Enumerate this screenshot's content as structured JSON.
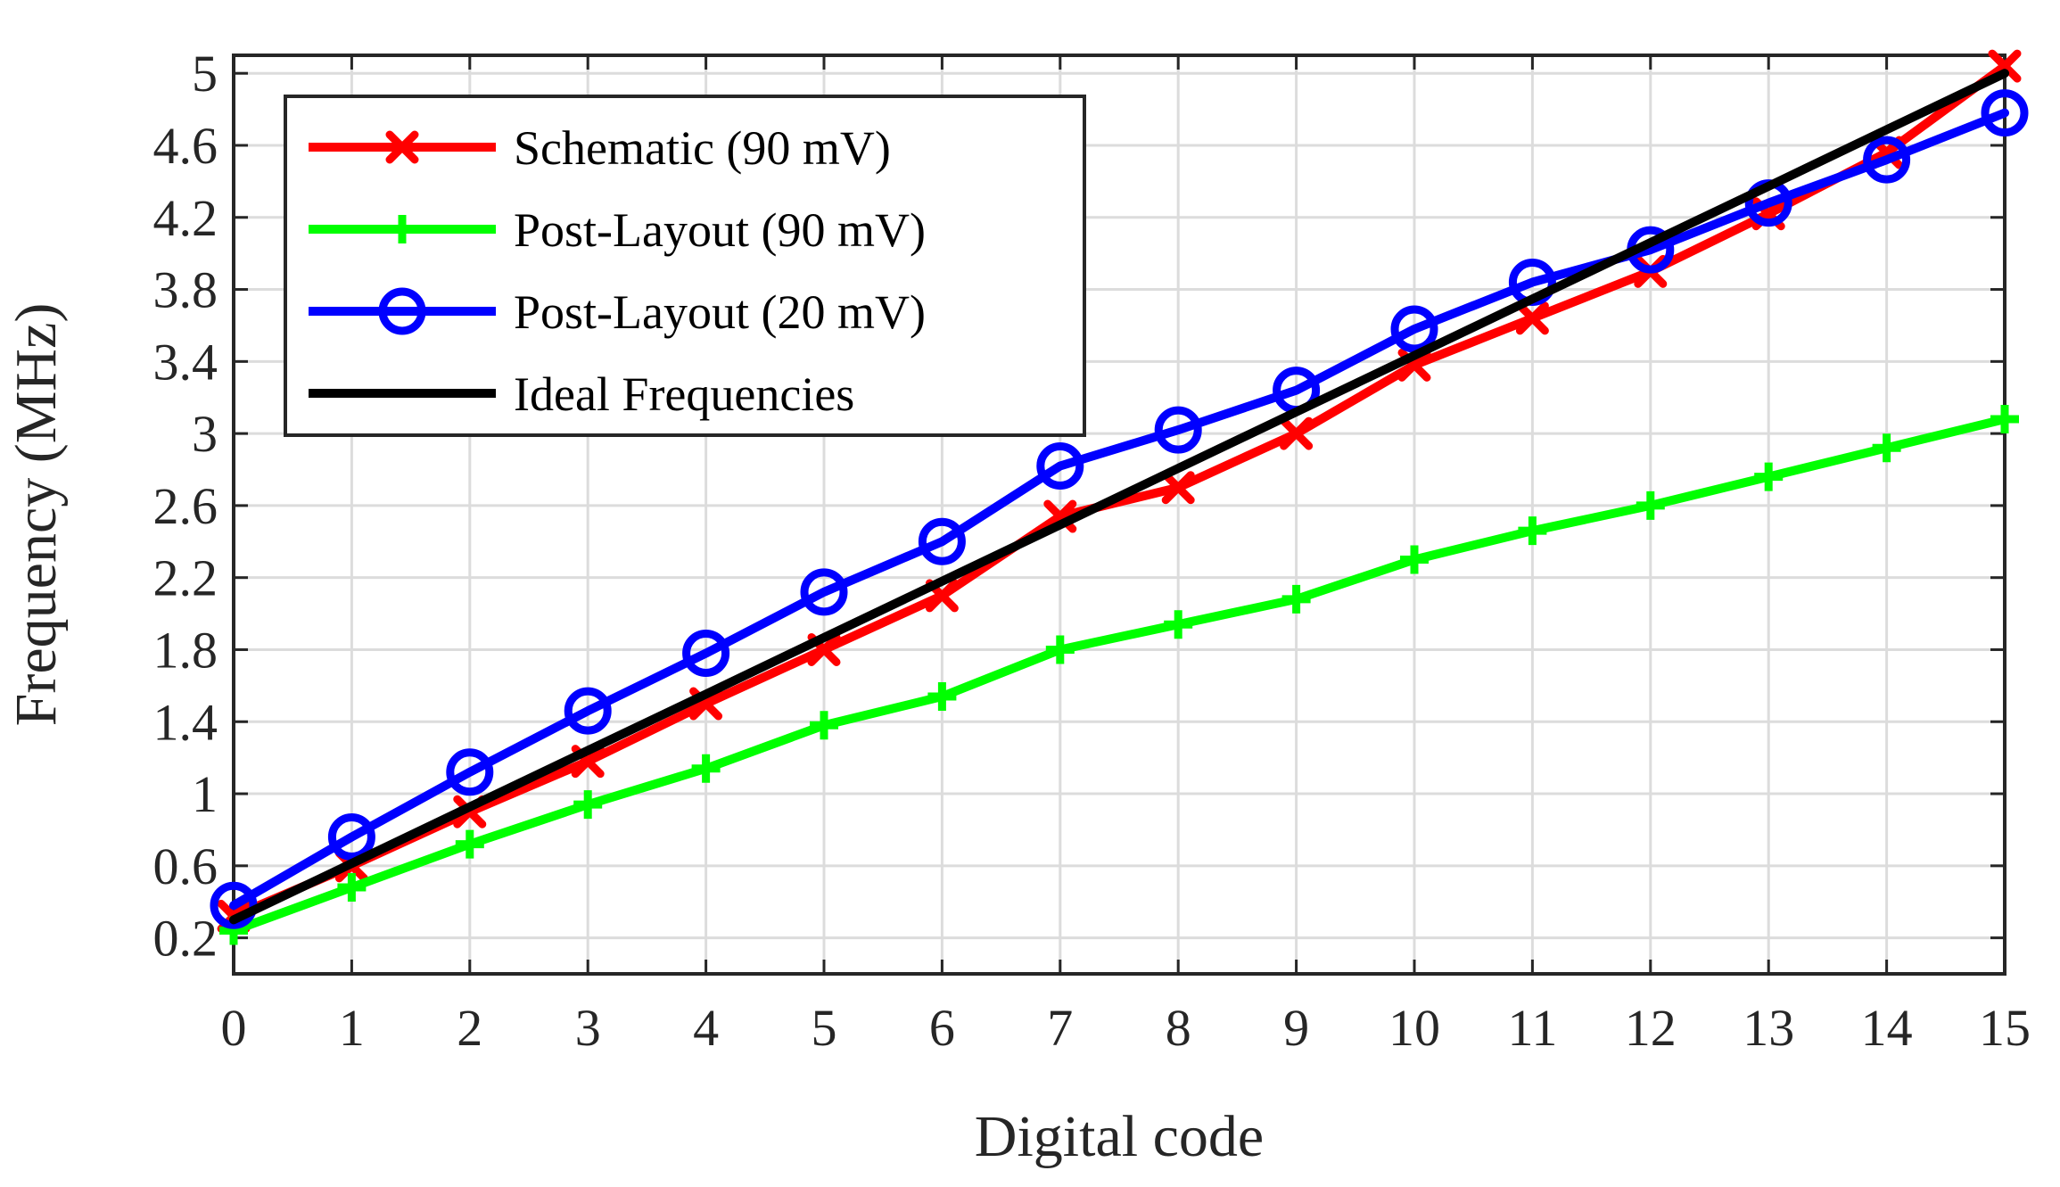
{
  "chart_data": {
    "type": "line",
    "title": "",
    "xlabel": "Digital code",
    "ylabel": "Frequency (MHz)",
    "xlim": [
      0,
      15
    ],
    "ylim": [
      0.0,
      5.1
    ],
    "x": [
      0,
      1,
      2,
      3,
      4,
      5,
      6,
      7,
      8,
      9,
      10,
      11,
      12,
      13,
      14,
      15
    ],
    "xticks": [
      "0",
      "1",
      "2",
      "3",
      "4",
      "5",
      "6",
      "7",
      "8",
      "9",
      "10",
      "11",
      "12",
      "13",
      "14",
      "15"
    ],
    "yticks": [
      0.2,
      0.6,
      1,
      1.4,
      1.8,
      2.2,
      2.6,
      3,
      3.4,
      3.8,
      4.2,
      4.6,
      5
    ],
    "ytick_labels": [
      "0.2",
      "0.6",
      "1",
      "1.4",
      "1.8",
      "2.2",
      "2.6",
      "3",
      "3.4",
      "3.8",
      "4.2",
      "4.6",
      "5"
    ],
    "grid": true,
    "legend_position": "top-left",
    "series": [
      {
        "name": "Schematic (90 mV)",
        "color": "#ff0000",
        "marker": "x",
        "values": [
          0.32,
          0.6,
          0.9,
          1.18,
          1.5,
          1.8,
          2.1,
          2.54,
          2.7,
          3.0,
          3.38,
          3.64,
          3.9,
          4.22,
          4.56,
          5.04
        ]
      },
      {
        "name": "Post-Layout (90 mV)",
        "color": "#00ff00",
        "marker": "+",
        "values": [
          0.24,
          0.48,
          0.72,
          0.94,
          1.14,
          1.38,
          1.54,
          1.8,
          1.94,
          2.08,
          2.3,
          2.46,
          2.6,
          2.76,
          2.92,
          3.08
        ]
      },
      {
        "name": "Post-Layout (20 mV)",
        "color": "#0000ff",
        "marker": "o",
        "values": [
          0.38,
          0.76,
          1.12,
          1.46,
          1.78,
          2.12,
          2.4,
          2.82,
          3.02,
          3.24,
          3.58,
          3.84,
          4.02,
          4.28,
          4.52,
          4.78
        ]
      },
      {
        "name": "Ideal Frequencies",
        "color": "#000000",
        "marker": "none",
        "values": [
          0.3,
          0.613,
          0.927,
          1.24,
          1.553,
          1.867,
          2.18,
          2.493,
          2.807,
          3.12,
          3.433,
          3.747,
          4.06,
          4.373,
          4.687,
          5.0
        ]
      }
    ]
  }
}
